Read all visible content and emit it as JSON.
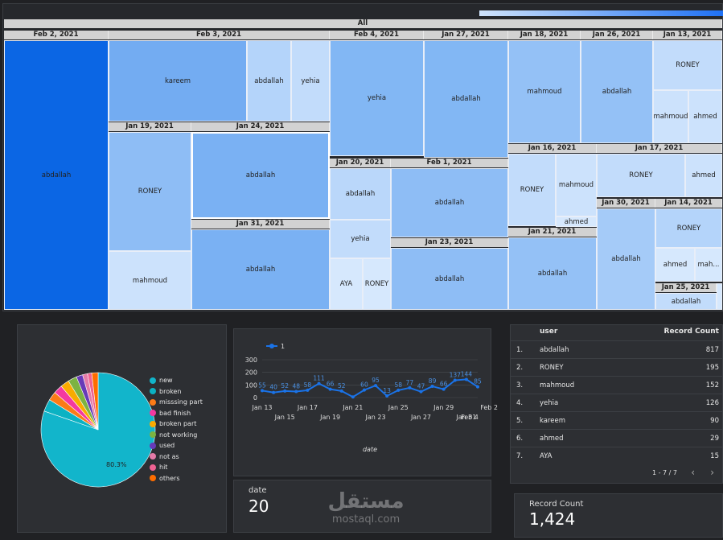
{
  "treemap": {
    "root_label": "All",
    "headers": [
      {
        "id": "feb2",
        "label": "Feb 2, 2021"
      },
      {
        "id": "feb3",
        "label": "Feb 3, 2021"
      },
      {
        "id": "feb4",
        "label": "Feb 4, 2021"
      },
      {
        "id": "jan27",
        "label": "Jan 27, 2021"
      },
      {
        "id": "jan18",
        "label": "Jan 18, 2021"
      },
      {
        "id": "jan26",
        "label": "Jan 26, 2021"
      },
      {
        "id": "jan13",
        "label": "Jan 13, 2021"
      },
      {
        "id": "jan19",
        "label": "Jan 19, 2021"
      },
      {
        "id": "jan24",
        "label": "Jan 24, 2021"
      },
      {
        "id": "jan20",
        "label": "Jan 20, 2021"
      },
      {
        "id": "feb1",
        "label": "Feb 1, 2021"
      },
      {
        "id": "jan16",
        "label": "Jan 16, 2021"
      },
      {
        "id": "jan17",
        "label": "Jan 17, 2021"
      },
      {
        "id": "jan30",
        "label": "Jan 30, 2021"
      },
      {
        "id": "jan14",
        "label": "Jan 14, 2021"
      },
      {
        "id": "jan31",
        "label": "Jan 31, 2021"
      },
      {
        "id": "jan23",
        "label": "Jan 23, 2021"
      },
      {
        "id": "jan21",
        "label": "Jan 21, 2021"
      },
      {
        "id": "jan25",
        "label": "Jan 25, 2021"
      }
    ],
    "cells": [
      {
        "id": "c1",
        "label": "abdallah",
        "color": "#0b66e4"
      },
      {
        "id": "c2",
        "label": "kareem",
        "color": "#73acf2"
      },
      {
        "id": "c3",
        "label": "abdallah",
        "color": "#b4d4fa"
      },
      {
        "id": "c4",
        "label": "yehia",
        "color": "#c2dcfb"
      },
      {
        "id": "c5",
        "label": "yehia",
        "color": "#82b7f4"
      },
      {
        "id": "c6",
        "label": "abdallah",
        "color": "#82b7f4"
      },
      {
        "id": "c7",
        "label": "mahmoud",
        "color": "#94c1f6"
      },
      {
        "id": "c8",
        "label": "abdallah",
        "color": "#94c1f6"
      },
      {
        "id": "c9",
        "label": "RONEY",
        "color": "#c2dcfb"
      },
      {
        "id": "c10",
        "label": "mahmoud",
        "color": "#cce2fc"
      },
      {
        "id": "c11",
        "label": "ahmed",
        "color": "#cce2fc"
      },
      {
        "id": "c12",
        "label": "RONEY",
        "color": "#8ebdf5"
      },
      {
        "id": "c13",
        "label": "abdallah",
        "color": "#7ab1f3"
      },
      {
        "id": "c14",
        "label": "abdallah",
        "color": "#bad7fa"
      },
      {
        "id": "c15",
        "label": "abdallah",
        "color": "#8ebdf5"
      },
      {
        "id": "c16",
        "label": "RONEY",
        "color": "#c2dcfb"
      },
      {
        "id": "c17",
        "label": "mahmoud",
        "color": "#cce2fc"
      },
      {
        "id": "c18",
        "label": "ahmed",
        "color": "#d6e8fd"
      },
      {
        "id": "c19",
        "label": "RONEY",
        "color": "#b4d4fa"
      },
      {
        "id": "c20",
        "label": "mahmoud",
        "color": "#cce2fc"
      },
      {
        "id": "c21",
        "label": "ahmed",
        "color": "#d6e8fd"
      },
      {
        "id": "c22",
        "label": "yehia",
        "color": "#c2dcfb"
      },
      {
        "id": "c23",
        "label": "AYA",
        "color": "#d6e8fd"
      },
      {
        "id": "c24",
        "label": "RONEY",
        "color": "#d6e8fd"
      },
      {
        "id": "c25",
        "label": "abdallah",
        "color": "#8ebdf5"
      },
      {
        "id": "c26",
        "label": "abdallah",
        "color": "#a5cbf8"
      },
      {
        "id": "c27",
        "label": "RONEY",
        "color": "#c2dcfb"
      },
      {
        "id": "c28",
        "label": "ahmed",
        "color": "#d6e8fd"
      },
      {
        "id": "c29",
        "label": "mah...",
        "color": "#d6e8fd"
      },
      {
        "id": "c30",
        "label": "abdallah",
        "color": "#7ab1f3"
      },
      {
        "id": "c31",
        "label": "abdallah",
        "color": "#a5cbf8"
      },
      {
        "id": "c32",
        "label": "abdallah",
        "color": "#c2dcfb"
      },
      {
        "id": "c33",
        "label": "abdallah",
        "color": "#94c1f6"
      }
    ]
  },
  "pie": {
    "percent_label": "80.3%",
    "legend": [
      {
        "label": "new",
        "color": "#12b5cb"
      },
      {
        "label": "broken",
        "color": "#0bb2c3"
      },
      {
        "label": "misssing part",
        "color": "#fa7b17"
      },
      {
        "label": "bad finish",
        "color": "#f439a0"
      },
      {
        "label": "broken part",
        "color": "#f9ab00"
      },
      {
        "label": "not working",
        "color": "#7cb342"
      },
      {
        "label": "used",
        "color": "#673ab7"
      },
      {
        "label": "not as",
        "color": "#e57ba8"
      },
      {
        "label": "hit",
        "color": "#f06292"
      },
      {
        "label": "others",
        "color": "#ff6d00"
      }
    ]
  },
  "chart_data": {
    "type": "line",
    "series": [
      {
        "name": "1",
        "values": [
          55,
          40,
          52,
          48,
          58,
          111,
          66,
          52,
          5,
          60,
          95,
          13,
          58,
          77,
          47,
          89,
          66,
          137,
          144,
          85
        ]
      }
    ],
    "x_tick_labels_top": [
      "Jan 13",
      "Jan 17",
      "Jan 21",
      "Jan 25",
      "Jan 29",
      "Feb 2"
    ],
    "x_tick_labels_bottom": [
      "Jan 15",
      "Jan 19",
      "Jan 23",
      "Jan 27",
      "Jan 31",
      "Feb 4"
    ],
    "y_ticks": [
      "300",
      "200",
      "100",
      "0"
    ],
    "xlabel": "date",
    "ylim": [
      0,
      300
    ],
    "color": "#1a73e8",
    "point_labels": [
      "55",
      "40",
      "52",
      "48",
      "58",
      "111",
      "66",
      "52",
      "",
      "60",
      "95",
      "13",
      "58",
      "77",
      "47",
      "89",
      "66",
      "137",
      "144",
      "85"
    ]
  },
  "table": {
    "col_user": "user",
    "col_count": "Record Count",
    "rows": [
      {
        "idx": "1.",
        "user": "abdallah",
        "count": "817"
      },
      {
        "idx": "2.",
        "user": "RONEY",
        "count": "195"
      },
      {
        "idx": "3.",
        "user": "mahmoud",
        "count": "152"
      },
      {
        "idx": "4.",
        "user": "yehia",
        "count": "126"
      },
      {
        "idx": "5.",
        "user": "kareem",
        "count": "90"
      },
      {
        "idx": "6.",
        "user": "ahmed",
        "count": "29"
      },
      {
        "idx": "7.",
        "user": "AYA",
        "count": "15"
      }
    ],
    "pagination": "1 - 7 / 7",
    "prev_icon": "chevron-left-icon",
    "next_icon": "chevron-right-icon"
  },
  "date_card": {
    "label": "date",
    "value": "20"
  },
  "record_card": {
    "label": "Record Count",
    "value": "1,424"
  },
  "watermark": {
    "arabic": "مستقل",
    "latin": "mostaql.com"
  }
}
